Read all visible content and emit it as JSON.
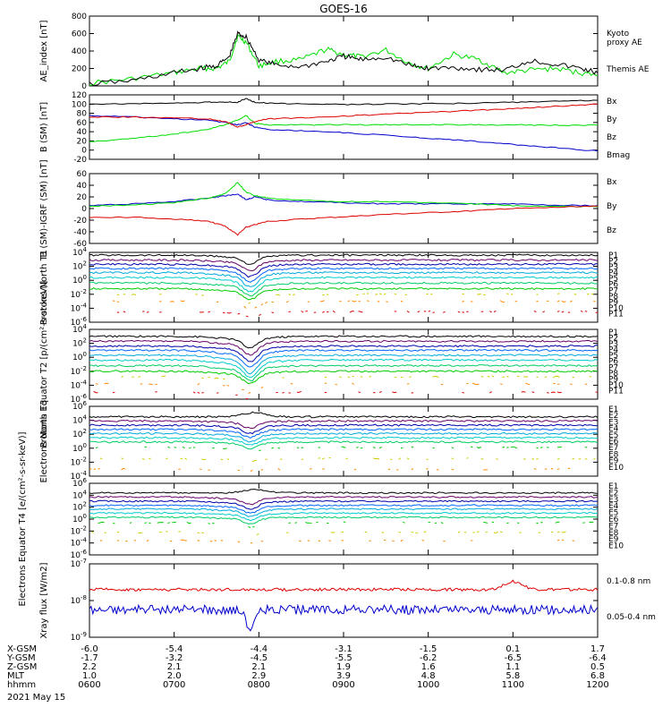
{
  "title": "GOES-16",
  "date": "2021 May 15",
  "footer": {
    "row_labels": [
      "X-GSM",
      "Y-GSM",
      "Z-GSM",
      "MLT",
      "hhmm"
    ],
    "columns": [
      [
        "-6.0",
        "-1.7",
        "2.2",
        "1.0",
        "0600"
      ],
      [
        "-5.4",
        "-3.2",
        "2.1",
        "2.0",
        "0700"
      ],
      [
        "-4.4",
        "-4.5",
        "2.1",
        "2.9",
        "0800"
      ],
      [
        "-3.1",
        "-5.5",
        "1.9",
        "3.9",
        "0900"
      ],
      [
        "-1.5",
        "-6.2",
        "1.6",
        "4.8",
        "1000"
      ],
      [
        "0.1",
        "-6.5",
        "1.1",
        "5.8",
        "1100"
      ],
      [
        "1.7",
        "-6.4",
        "0.5",
        "6.8",
        "1200"
      ]
    ]
  },
  "colors": {
    "black": "#000000",
    "green": "#00dd00",
    "red": "#dd0000",
    "blue": "#0000cc",
    "P1": "#000000",
    "P2": "#660066",
    "P3": "#0000aa",
    "P4": "#0066ff",
    "P5": "#00aadd",
    "P6": "#00cccc",
    "P7": "#00cc66",
    "P8": "#00cc00",
    "P9": "#cccc00",
    "P10": "#ff8800",
    "P11": "#dd0000"
  },
  "chart_data": [
    {
      "type": "line",
      "ylabel": "AE_index [nT]",
      "ylim": [
        0,
        800
      ],
      "yticks": [
        "0",
        "200",
        "400",
        "600",
        "800"
      ],
      "grid": false,
      "legend_position": "right",
      "legend_labels": [
        "Kyoto",
        "proxy AE",
        "Themis AE"
      ],
      "x_hours": [
        6,
        6.5,
        7,
        7.3,
        7.5,
        7.65,
        7.75,
        7.85,
        8,
        8.2,
        8.5,
        8.8,
        9,
        9.2,
        9.5,
        9.8,
        10,
        10.3,
        10.6,
        10.9,
        11.2,
        11.5,
        11.8,
        12
      ],
      "series": [
        {
          "name": "Kyoto proxy AE",
          "color": "green",
          "values": [
            30,
            80,
            150,
            200,
            200,
            280,
            570,
            500,
            230,
            280,
            300,
            420,
            360,
            330,
            410,
            250,
            200,
            360,
            300,
            150,
            180,
            200,
            150,
            120
          ]
        },
        {
          "name": "Themis AE",
          "color": "black",
          "values": [
            20,
            60,
            150,
            200,
            230,
            330,
            600,
            560,
            300,
            240,
            220,
            280,
            340,
            300,
            330,
            230,
            200,
            210,
            190,
            180,
            290,
            250,
            200,
            150
          ]
        }
      ]
    },
    {
      "type": "line",
      "ylabel": "B (SM) [nT]",
      "ylim": [
        -20,
        120
      ],
      "yticks": [
        "-20",
        "0",
        "20",
        "40",
        "60",
        "80",
        "100",
        "120"
      ],
      "grid": false,
      "legend_position": "right",
      "legend_labels": [
        "Bx",
        "By",
        "Bz",
        "Bmag"
      ],
      "x_hours": [
        6,
        6.5,
        7,
        7.4,
        7.6,
        7.75,
        7.85,
        7.95,
        8.1,
        8.5,
        9,
        9.5,
        10,
        10.5,
        11,
        11.5,
        12
      ],
      "series": [
        {
          "name": "Bx",
          "color": "blue",
          "values": [
            75,
            72,
            68,
            65,
            60,
            55,
            60,
            50,
            45,
            42,
            38,
            32,
            26,
            20,
            12,
            5,
            -2
          ]
        },
        {
          "name": "By",
          "color": "green",
          "values": [
            18,
            25,
            35,
            45,
            55,
            65,
            75,
            58,
            55,
            55,
            55,
            55,
            55,
            55,
            55,
            54,
            54
          ]
        },
        {
          "name": "Bz",
          "color": "red",
          "values": [
            72,
            72,
            70,
            68,
            62,
            50,
            55,
            62,
            68,
            70,
            74,
            78,
            82,
            86,
            90,
            95,
            100
          ]
        },
        {
          "name": "Bmag",
          "color": "black",
          "values": [
            100,
            101,
            102,
            104,
            104,
            104,
            112,
            104,
            102,
            100,
            99,
            100,
            101,
            102,
            104,
            106,
            108
          ]
        }
      ]
    },
    {
      "type": "line",
      "ylabel": "B (SM)-IGRF (SM) [nT]",
      "ylim": [
        -60,
        60
      ],
      "yticks": [
        "-60",
        "-40",
        "-20",
        "0",
        "20",
        "40",
        "60"
      ],
      "grid": false,
      "legend_position": "right",
      "legend_labels": [
        "Bx",
        "By",
        "Bz"
      ],
      "x_hours": [
        6,
        6.5,
        7,
        7.4,
        7.6,
        7.75,
        7.85,
        7.95,
        8.1,
        8.5,
        9,
        9.5,
        10,
        10.5,
        11,
        11.5,
        12
      ],
      "series": [
        {
          "name": "Bx",
          "color": "blue",
          "values": [
            5,
            8,
            12,
            18,
            22,
            25,
            15,
            20,
            15,
            12,
            10,
            8,
            8,
            8,
            8,
            6,
            5
          ]
        },
        {
          "name": "By",
          "color": "green",
          "values": [
            4,
            6,
            10,
            18,
            25,
            45,
            28,
            22,
            18,
            14,
            12,
            12,
            10,
            8,
            5,
            4,
            3
          ]
        },
        {
          "name": "Bz",
          "color": "red",
          "values": [
            -15,
            -15,
            -18,
            -22,
            -30,
            -45,
            -32,
            -28,
            -22,
            -18,
            -14,
            -10,
            -7,
            -4,
            0,
            2,
            4
          ]
        }
      ]
    },
    {
      "type": "line",
      "ylabel": "Protons North T1",
      "log_scale": true,
      "ylim_exp": [
        -6,
        4
      ],
      "yticks": [
        "10^4",
        "10^2",
        "10^0",
        "10^-2",
        "10^-4",
        "10^-6"
      ],
      "grid": false,
      "legend_position": "right",
      "legend_labels": [
        "P1",
        "P2",
        "P3",
        "P4",
        "P5",
        "P6",
        "P7",
        "P8",
        "P9",
        "P10",
        "P11"
      ],
      "base_log_values": [
        3.6,
        2.9,
        2.3,
        1.7,
        1.1,
        0.4,
        -0.4,
        -1.2,
        -2.0,
        -3.0,
        -4.5
      ],
      "dip_log_depth": [
        1.0,
        1.2,
        1.4,
        1.5,
        1.6,
        1.6,
        1.4,
        1.2,
        1.0,
        0.8,
        0.6
      ]
    },
    {
      "type": "line",
      "ylabel": "Protons Equator T2 [p/(cm²-s-sr-keV)]",
      "log_scale": true,
      "ylim_exp": [
        -6,
        4
      ],
      "yticks": [
        "10^4",
        "10^2",
        "10^0",
        "10^-2",
        "10^-4",
        "10^-6"
      ],
      "grid": false,
      "legend_position": "right",
      "legend_labels": [
        "P1",
        "P2",
        "P3",
        "P4",
        "P5",
        "P6",
        "P7",
        "P8",
        "P9",
        "P10",
        "P11"
      ],
      "base_log_values": [
        3.0,
        2.3,
        1.6,
        1.0,
        0.3,
        -0.4,
        -1.2,
        -2.0,
        -2.8,
        -3.8,
        -5.0
      ],
      "dip_log_depth": [
        1.3,
        1.5,
        1.7,
        1.9,
        2.0,
        1.9,
        1.7,
        1.4,
        1.2,
        1.0,
        0.8
      ]
    },
    {
      "type": "line",
      "ylabel": "Electrons North T3",
      "log_scale": true,
      "ylim_exp": [
        -4,
        6
      ],
      "yticks": [
        "10^6",
        "10^4",
        "10^2",
        "10^0",
        "10^-2",
        "10^-4"
      ],
      "grid": false,
      "legend_position": "right",
      "legend_labels": [
        "E1",
        "E2",
        "E3",
        "E4",
        "E5",
        "E6",
        "E7",
        "E8",
        "E9",
        "E10"
      ],
      "base_log_values": [
        4.5,
        3.9,
        3.3,
        2.7,
        2.1,
        1.5,
        0.9,
        0.1,
        -1.5,
        -3.0
      ],
      "dip_log_depth": [
        -0.6,
        0.8,
        0.9,
        0.9,
        0.9,
        0.8,
        0.7,
        0.5,
        0.3,
        0.2
      ]
    },
    {
      "type": "line",
      "ylabel": "Electrons Equator T4 [e/(cm²-s-sr-keV)]",
      "log_scale": true,
      "ylim_exp": [
        -6,
        6
      ],
      "yticks": [
        "10^6",
        "10^4",
        "10^2",
        "10^0",
        "10^-2",
        "10^-4",
        "10^-6"
      ],
      "grid": false,
      "legend_position": "right",
      "legend_labels": [
        "E1",
        "E2",
        "E3",
        "E4",
        "E5",
        "E6",
        "E7",
        "E8",
        "E9",
        "E10"
      ],
      "base_log_values": [
        4.4,
        3.7,
        3.0,
        2.3,
        1.7,
        1.0,
        0.3,
        -0.6,
        -2.2,
        -3.6
      ],
      "dip_log_depth": [
        -0.5,
        1.0,
        1.0,
        1.0,
        1.0,
        0.9,
        0.8,
        0.6,
        0.4,
        0.3
      ]
    },
    {
      "type": "line",
      "ylabel": "Xray flux [W/m2]",
      "log_scale": true,
      "ylim_exp": [
        -9,
        -7
      ],
      "yticks": [
        "10^-7",
        "10^-8",
        "10^-9"
      ],
      "grid": false,
      "legend_position": "right",
      "legend_labels": [
        "0.1-0.8 nm",
        "0.05-0.4 nm"
      ],
      "series": [
        {
          "name": "0.1-0.8 nm",
          "color": "red",
          "base_log_value": -7.7
        },
        {
          "name": "0.05-0.4 nm",
          "color": "blue",
          "base_log_value": -8.25
        }
      ]
    }
  ]
}
